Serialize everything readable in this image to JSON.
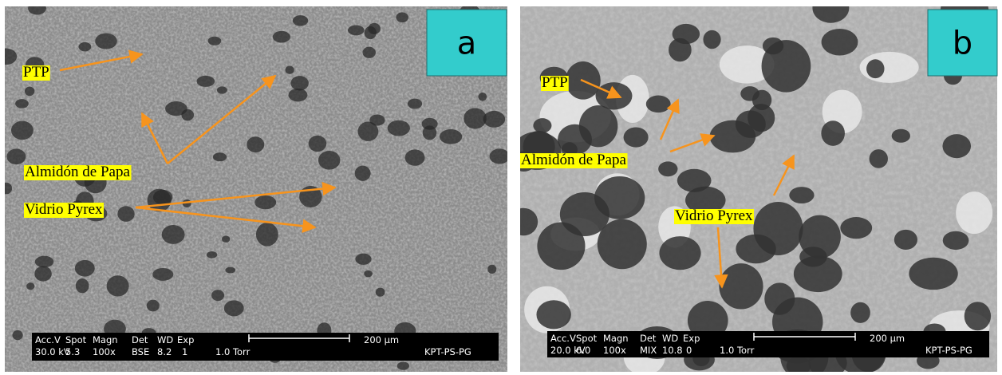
{
  "panels": [
    {
      "letter": "a",
      "labels": [
        "PTP",
        "Almidón de Papa",
        "Vidrio Pyrex"
      ],
      "info_header": [
        "Acc.V",
        "Spot",
        "Magn",
        "Det",
        "WD",
        "Exp"
      ],
      "info_values": [
        "30.0 kV",
        "5.3",
        "100x",
        "BSE",
        "8.2",
        "1"
      ],
      "pressure": "1.0 Torr",
      "scale": "200 µm",
      "sample": "KPT-PS-PG"
    },
    {
      "letter": "b",
      "labels": [
        "PTP",
        "Almidón de Papa",
        "Vidrio Pyrex"
      ],
      "info_header": [
        "Acc.V",
        "Spot",
        "Magn",
        "Det",
        "WD",
        "Exp"
      ],
      "info_values": [
        "20.0 kV",
        "6.0",
        "100x",
        "MIX",
        "10.8",
        "0"
      ],
      "pressure": "1.0 Torr",
      "scale": "200 µm",
      "sample": "KPT-PS-PG"
    }
  ]
}
